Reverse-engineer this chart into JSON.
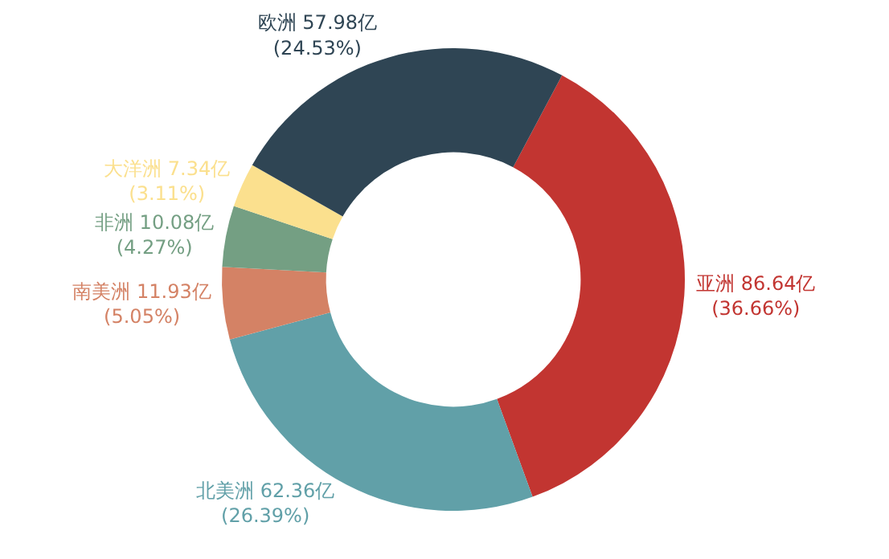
{
  "chart_data": {
    "type": "donut",
    "categories": [
      "亚洲",
      "北美洲",
      "南美洲",
      "非洲",
      "大洋洲",
      "欧洲"
    ],
    "values": [
      86.64,
      62.36,
      11.93,
      10.08,
      7.34,
      57.98
    ],
    "colors": [
      "#c23531",
      "#61a0a8",
      "#d48265",
      "#749f83",
      "#fbe08e",
      "#2f4554"
    ],
    "value_labels": [
      "86.64亿\n(36.66%)",
      "62.36亿\n(26.39%)",
      "11.93亿\n(5.05%)",
      "10.08亿\n(4.27%)",
      "7.34亿\n(3.11%)",
      "57.98亿\n(24.53%)"
    ],
    "legend": false
  }
}
